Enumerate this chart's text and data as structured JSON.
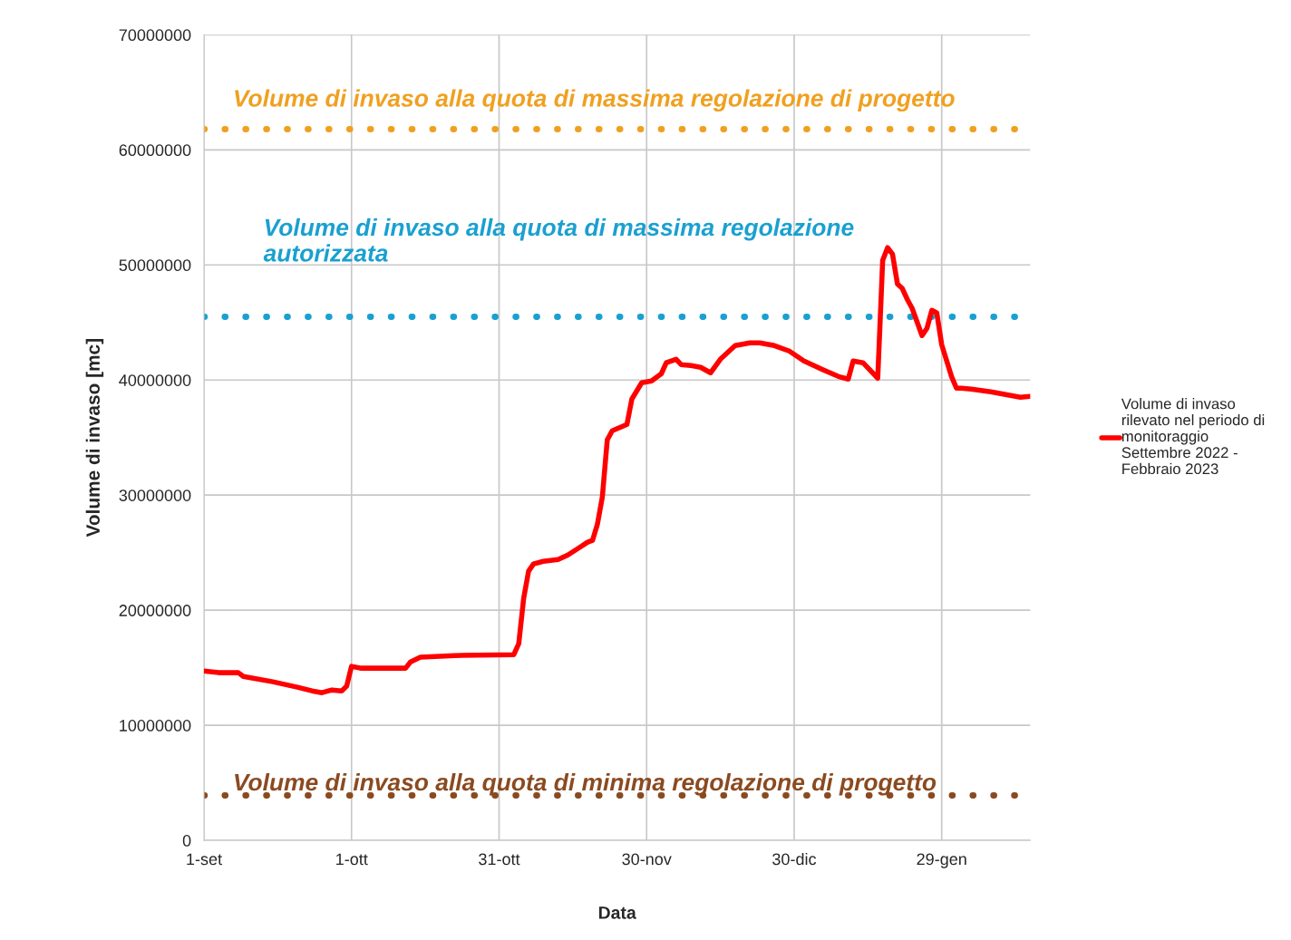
{
  "chart_data": {
    "type": "line",
    "xlabel": "Data",
    "ylabel": "Volume di invaso [mc]",
    "xlim": [
      "2022-09-01",
      "2023-02-16"
    ],
    "ylim": [
      0,
      70000000
    ],
    "xticks": [
      {
        "value": "2022-09-01",
        "label": "1-set"
      },
      {
        "value": "2022-10-01",
        "label": "1-ott"
      },
      {
        "value": "2022-10-31",
        "label": "31-ott"
      },
      {
        "value": "2022-11-30",
        "label": "30-nov"
      },
      {
        "value": "2022-12-30",
        "label": "30-dic"
      },
      {
        "value": "2023-01-29",
        "label": "29-gen"
      }
    ],
    "yticks": [
      0,
      10000000,
      20000000,
      30000000,
      40000000,
      50000000,
      60000000,
      70000000
    ],
    "grid": true,
    "legend": "right",
    "line_style": "solid",
    "marker": "none",
    "series": [
      {
        "name": "Volume di invaso\nrilevato nel periodo di\nmonitoraggio\nSettembre 2022 -\nFebbraio 2023",
        "color": "#ff0000",
        "x": [
          "2022-09-01",
          "2022-09-04",
          "2022-09-08",
          "2022-09-09",
          "2022-09-15",
          "2022-09-20",
          "2022-09-23",
          "2022-09-25",
          "2022-09-27",
          "2022-09-29",
          "2022-09-30",
          "2022-10-01",
          "2022-10-03",
          "2022-10-12",
          "2022-10-13",
          "2022-10-15",
          "2022-10-22",
          "2022-11-03",
          "2022-11-04",
          "2022-11-05",
          "2022-11-06",
          "2022-11-07",
          "2022-11-09",
          "2022-11-12",
          "2022-11-14",
          "2022-11-16",
          "2022-11-18",
          "2022-11-19",
          "2022-11-20",
          "2022-11-21",
          "2022-11-22",
          "2022-11-23",
          "2022-11-26",
          "2022-11-27",
          "2022-11-29",
          "2022-12-01",
          "2022-12-03",
          "2022-12-04",
          "2022-12-06",
          "2022-12-07",
          "2022-12-09",
          "2022-12-11",
          "2022-12-13",
          "2022-12-15",
          "2022-12-18",
          "2022-12-21",
          "2022-12-23",
          "2022-12-26",
          "2022-12-29",
          "2023-01-01",
          "2023-01-05",
          "2023-01-08",
          "2023-01-10",
          "2023-01-11",
          "2023-01-13",
          "2023-01-16",
          "2023-01-17",
          "2023-01-18",
          "2023-01-19",
          "2023-01-20",
          "2023-01-21",
          "2023-01-22",
          "2023-01-23",
          "2023-01-25",
          "2023-01-26",
          "2023-01-27",
          "2023-01-28",
          "2023-01-29",
          "2023-01-31",
          "2023-02-01",
          "2023-02-02",
          "2023-02-04",
          "2023-02-08",
          "2023-02-12",
          "2023-02-14",
          "2023-02-16"
        ],
        "values": [
          14720000,
          14570000,
          14570000,
          14250000,
          13780000,
          13310000,
          12990000,
          12830000,
          13070000,
          12990000,
          13390000,
          15120000,
          14960000,
          14960000,
          15510000,
          15910000,
          16060000,
          16140000,
          17090000,
          21020000,
          23390000,
          24020000,
          24250000,
          24410000,
          24800000,
          25350000,
          25910000,
          26060000,
          27480000,
          29840000,
          34800000,
          35590000,
          36140000,
          38350000,
          39760000,
          39920000,
          40550000,
          41500000,
          41810000,
          41340000,
          41260000,
          41100000,
          40630000,
          41810000,
          42990000,
          43230000,
          43230000,
          42990000,
          42520000,
          41650000,
          40870000,
          40310000,
          40080000,
          41650000,
          41500000,
          40160000,
          50390000,
          51500000,
          50940000,
          48350000,
          47950000,
          47010000,
          46220000,
          43860000,
          44490000,
          46060000,
          45830000,
          43070000,
          40310000,
          39290000,
          39290000,
          39210000,
          38980000,
          38660000,
          38500000,
          38580000
        ]
      }
    ],
    "ref_lines": [
      {
        "axis": "y",
        "value": 61800000,
        "label": "Volume di invaso alla quota di massima regolazione di progetto",
        "color": "#f0a020",
        "line_style": "dotted"
      },
      {
        "axis": "y",
        "value": 45500000,
        "label": "Volume di invaso alla quota di massima regolazione autorizzata",
        "color": "#1aa0d0",
        "line_style": "dotted"
      },
      {
        "axis": "y",
        "value": 3900000,
        "label": "Volume di invaso alla quota di minima regolazione di progetto",
        "color": "#8a4a20",
        "line_style": "dotted"
      }
    ]
  }
}
